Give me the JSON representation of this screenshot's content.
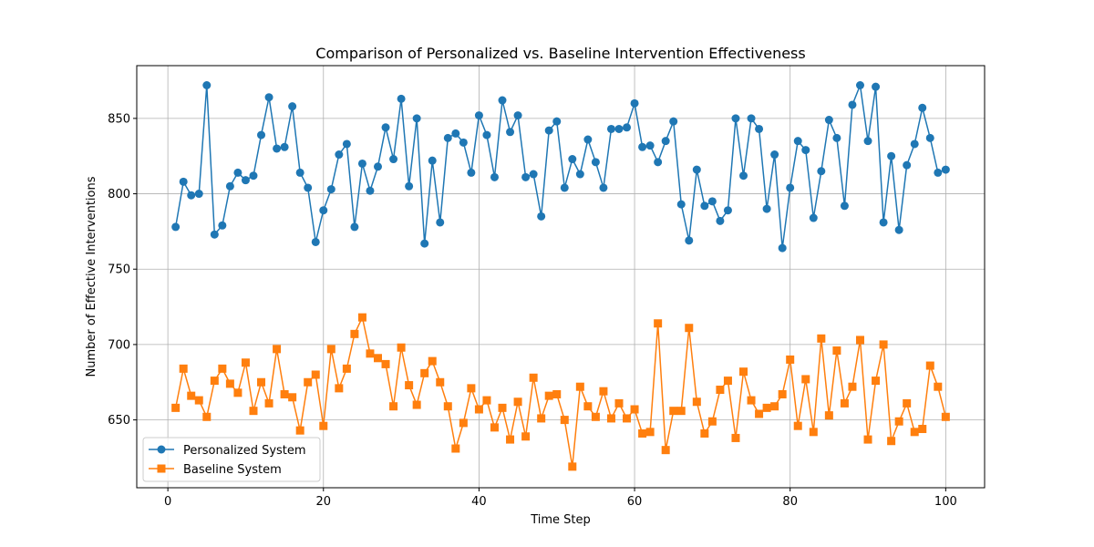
{
  "chart_data": {
    "type": "line",
    "title": "Comparison of Personalized vs. Baseline Intervention Effectiveness",
    "xlabel": "Time Step",
    "ylabel": "Number of Effective Interventions",
    "xlim": [
      -4,
      105
    ],
    "ylim": [
      605,
      885
    ],
    "xticks": [
      0,
      20,
      40,
      60,
      80,
      100
    ],
    "yticks": [
      650,
      700,
      750,
      800,
      850
    ],
    "grid": true,
    "legend_position": "lower-left",
    "x": [
      1,
      2,
      3,
      4,
      5,
      6,
      7,
      8,
      9,
      10,
      11,
      12,
      13,
      14,
      15,
      16,
      17,
      18,
      19,
      20,
      21,
      22,
      23,
      24,
      25,
      26,
      27,
      28,
      29,
      30,
      31,
      32,
      33,
      34,
      35,
      36,
      37,
      38,
      39,
      40,
      41,
      42,
      43,
      44,
      45,
      46,
      47,
      48,
      49,
      50,
      51,
      52,
      53,
      54,
      55,
      56,
      57,
      58,
      59,
      60,
      61,
      62,
      63,
      64,
      65,
      66,
      67,
      68,
      69,
      70,
      71,
      72,
      73,
      74,
      75,
      76,
      77,
      78,
      79,
      80,
      81,
      82,
      83,
      84,
      85,
      86,
      87,
      88,
      89,
      90,
      91,
      92,
      93,
      94,
      95,
      96,
      97,
      98,
      99,
      100
    ],
    "series": [
      {
        "name": "Personalized System",
        "color": "#1f77b4",
        "marker": "circle",
        "values": [
          778,
          808,
          799,
          800,
          872,
          773,
          779,
          805,
          814,
          809,
          812,
          839,
          864,
          830,
          831,
          858,
          814,
          804,
          768,
          789,
          803,
          826,
          833,
          778,
          820,
          802,
          818,
          844,
          823,
          863,
          805,
          850,
          767,
          822,
          781,
          837,
          840,
          834,
          814,
          852,
          839,
          811,
          862,
          841,
          852,
          811,
          813,
          785,
          842,
          848,
          804,
          823,
          813,
          836,
          821,
          804,
          843,
          843,
          844,
          860,
          831,
          832,
          821,
          835,
          848,
          793,
          769,
          816,
          792,
          795,
          782,
          789,
          850,
          812,
          850,
          843,
          790,
          826,
          764,
          804,
          835,
          829,
          784,
          815,
          849,
          837,
          792,
          859,
          872,
          835,
          871,
          781,
          825,
          776,
          819,
          833,
          857,
          837,
          814,
          816
        ]
      },
      {
        "name": "Baseline System",
        "color": "#ff7f0e",
        "marker": "square",
        "values": [
          658,
          684,
          666,
          663,
          652,
          676,
          684,
          674,
          668,
          688,
          656,
          675,
          661,
          697,
          667,
          665,
          643,
          675,
          680,
          646,
          697,
          671,
          684,
          707,
          718,
          694,
          691,
          687,
          659,
          698,
          673,
          660,
          681,
          689,
          675,
          659,
          631,
          648,
          671,
          657,
          663,
          645,
          658,
          637,
          662,
          639,
          678,
          651,
          666,
          667,
          650,
          619,
          672,
          659,
          652,
          669,
          651,
          661,
          651,
          657,
          641,
          642,
          714,
          630,
          656,
          656,
          711,
          662,
          641,
          649,
          670,
          676,
          638,
          682,
          663,
          654,
          658,
          659,
          667,
          690,
          646,
          677,
          642,
          704,
          653,
          696,
          661,
          672,
          703,
          637,
          676,
          700,
          636,
          649,
          661,
          642,
          644,
          686,
          672,
          652
        ]
      }
    ]
  }
}
